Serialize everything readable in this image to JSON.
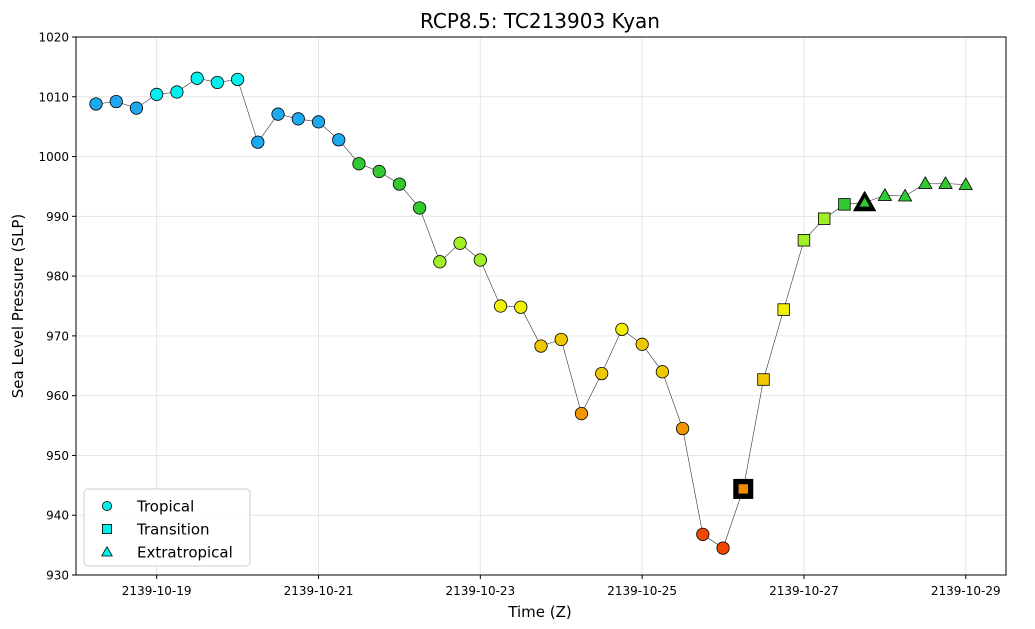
{
  "chart_data": {
    "type": "scatter",
    "title": "RCP8.5: TC213903 Kyan",
    "xlabel": "Time (Z)",
    "ylabel": "Sea Level Pressure (SLP)",
    "ylim": [
      930,
      1020
    ],
    "xlim": [
      "2139-10-18 06:00",
      "2139-10-29 06:00"
    ],
    "xticks": [
      {
        "t": "2139-10-19 00:00",
        "label": "2139-10-19"
      },
      {
        "t": "2139-10-21 00:00",
        "label": "2139-10-21"
      },
      {
        "t": "2139-10-23 00:00",
        "label": "2139-10-23"
      },
      {
        "t": "2139-10-25 00:00",
        "label": "2139-10-25"
      },
      {
        "t": "2139-10-27 00:00",
        "label": "2139-10-27"
      },
      {
        "t": "2139-10-29 00:00",
        "label": "2139-10-29"
      }
    ],
    "yticks": [
      930,
      940,
      950,
      960,
      970,
      980,
      990,
      1000,
      1010,
      1020
    ],
    "grid": true,
    "legend": {
      "placement": "lower-left",
      "entries": [
        {
          "label": "Tropical",
          "marker": "circle"
        },
        {
          "label": "Transition",
          "marker": "square"
        },
        {
          "label": "Extratropical",
          "marker": "triangle"
        }
      ]
    },
    "points": [
      {
        "t": "2139-10-18 06:00",
        "slp": 1008.8,
        "phase": "Tropical",
        "color": "#1ea8f0"
      },
      {
        "t": "2139-10-18 12:00",
        "slp": 1009.2,
        "phase": "Tropical",
        "color": "#1ea8f0"
      },
      {
        "t": "2139-10-18 18:00",
        "slp": 1008.1,
        "phase": "Tropical",
        "color": "#1ea8f0"
      },
      {
        "t": "2139-10-19 00:00",
        "slp": 1010.4,
        "phase": "Tropical",
        "color": "#00f0f0"
      },
      {
        "t": "2139-10-19 06:00",
        "slp": 1010.8,
        "phase": "Tropical",
        "color": "#00f0f0"
      },
      {
        "t": "2139-10-19 12:00",
        "slp": 1013.1,
        "phase": "Tropical",
        "color": "#00f0f0"
      },
      {
        "t": "2139-10-19 18:00",
        "slp": 1012.4,
        "phase": "Tropical",
        "color": "#00f0f0"
      },
      {
        "t": "2139-10-20 00:00",
        "slp": 1012.9,
        "phase": "Tropical",
        "color": "#00f0f0"
      },
      {
        "t": "2139-10-20 06:00",
        "slp": 1002.4,
        "phase": "Tropical",
        "color": "#1ea8f0"
      },
      {
        "t": "2139-10-20 12:00",
        "slp": 1007.1,
        "phase": "Tropical",
        "color": "#1ea8f0"
      },
      {
        "t": "2139-10-20 18:00",
        "slp": 1006.3,
        "phase": "Tropical",
        "color": "#1ea8f0"
      },
      {
        "t": "2139-10-21 00:00",
        "slp": 1005.8,
        "phase": "Tropical",
        "color": "#1ea8f0"
      },
      {
        "t": "2139-10-21 06:00",
        "slp": 1002.8,
        "phase": "Tropical",
        "color": "#1ea8f0"
      },
      {
        "t": "2139-10-21 12:00",
        "slp": 998.8,
        "phase": "Tropical",
        "color": "#32c832"
      },
      {
        "t": "2139-10-21 18:00",
        "slp": 997.5,
        "phase": "Tropical",
        "color": "#32c832"
      },
      {
        "t": "2139-10-22 00:00",
        "slp": 995.4,
        "phase": "Tropical",
        "color": "#32c832"
      },
      {
        "t": "2139-10-22 06:00",
        "slp": 991.4,
        "phase": "Tropical",
        "color": "#32c832"
      },
      {
        "t": "2139-10-22 12:00",
        "slp": 982.4,
        "phase": "Tropical",
        "color": "#a0f028"
      },
      {
        "t": "2139-10-22 18:00",
        "slp": 985.5,
        "phase": "Tropical",
        "color": "#a0f028"
      },
      {
        "t": "2139-10-23 00:00",
        "slp": 982.7,
        "phase": "Tropical",
        "color": "#a0f028"
      },
      {
        "t": "2139-10-23 06:00",
        "slp": 975.0,
        "phase": "Tropical",
        "color": "#f0f000"
      },
      {
        "t": "2139-10-23 12:00",
        "slp": 974.8,
        "phase": "Tropical",
        "color": "#f0f000"
      },
      {
        "t": "2139-10-23 18:00",
        "slp": 968.3,
        "phase": "Tropical",
        "color": "#f0c800"
      },
      {
        "t": "2139-10-24 00:00",
        "slp": 969.4,
        "phase": "Tropical",
        "color": "#f0c800"
      },
      {
        "t": "2139-10-24 06:00",
        "slp": 957.0,
        "phase": "Tropical",
        "color": "#f09600"
      },
      {
        "t": "2139-10-24 12:00",
        "slp": 963.7,
        "phase": "Tropical",
        "color": "#f0c800"
      },
      {
        "t": "2139-10-24 18:00",
        "slp": 971.1,
        "phase": "Tropical",
        "color": "#f0f000"
      },
      {
        "t": "2139-10-25 00:00",
        "slp": 968.6,
        "phase": "Tropical",
        "color": "#f0c800"
      },
      {
        "t": "2139-10-25 06:00",
        "slp": 964.0,
        "phase": "Tropical",
        "color": "#f0c800"
      },
      {
        "t": "2139-10-25 12:00",
        "slp": 954.5,
        "phase": "Tropical",
        "color": "#f09600"
      },
      {
        "t": "2139-10-25 18:00",
        "slp": 936.8,
        "phase": "Tropical",
        "color": "#f04600"
      },
      {
        "t": "2139-10-26 00:00",
        "slp": 934.5,
        "phase": "Tropical",
        "color": "#f04600"
      },
      {
        "t": "2139-10-26 06:00",
        "slp": 944.4,
        "phase": "Transition",
        "color": "#f08c00",
        "highlight": true
      },
      {
        "t": "2139-10-26 12:00",
        "slp": 962.7,
        "phase": "Transition",
        "color": "#f0c800"
      },
      {
        "t": "2139-10-26 18:00",
        "slp": 974.4,
        "phase": "Transition",
        "color": "#f0f000"
      },
      {
        "t": "2139-10-27 00:00",
        "slp": 986.0,
        "phase": "Transition",
        "color": "#a0f028"
      },
      {
        "t": "2139-10-27 06:00",
        "slp": 989.6,
        "phase": "Transition",
        "color": "#a0f028"
      },
      {
        "t": "2139-10-27 12:00",
        "slp": 992.0,
        "phase": "Transition",
        "color": "#32c832"
      },
      {
        "t": "2139-10-27 18:00",
        "slp": 992.3,
        "phase": "Extratropical",
        "color": "#32c832",
        "highlight": true
      },
      {
        "t": "2139-10-28 00:00",
        "slp": 993.5,
        "phase": "Extratropical",
        "color": "#32c832"
      },
      {
        "t": "2139-10-28 06:00",
        "slp": 993.4,
        "phase": "Extratropical",
        "color": "#32c832"
      },
      {
        "t": "2139-10-28 12:00",
        "slp": 995.5,
        "phase": "Extratropical",
        "color": "#32c832"
      },
      {
        "t": "2139-10-28 18:00",
        "slp": 995.5,
        "phase": "Extratropical",
        "color": "#32c832"
      },
      {
        "t": "2139-10-29 00:00",
        "slp": 995.3,
        "phase": "Extratropical",
        "color": "#32c832"
      }
    ]
  }
}
